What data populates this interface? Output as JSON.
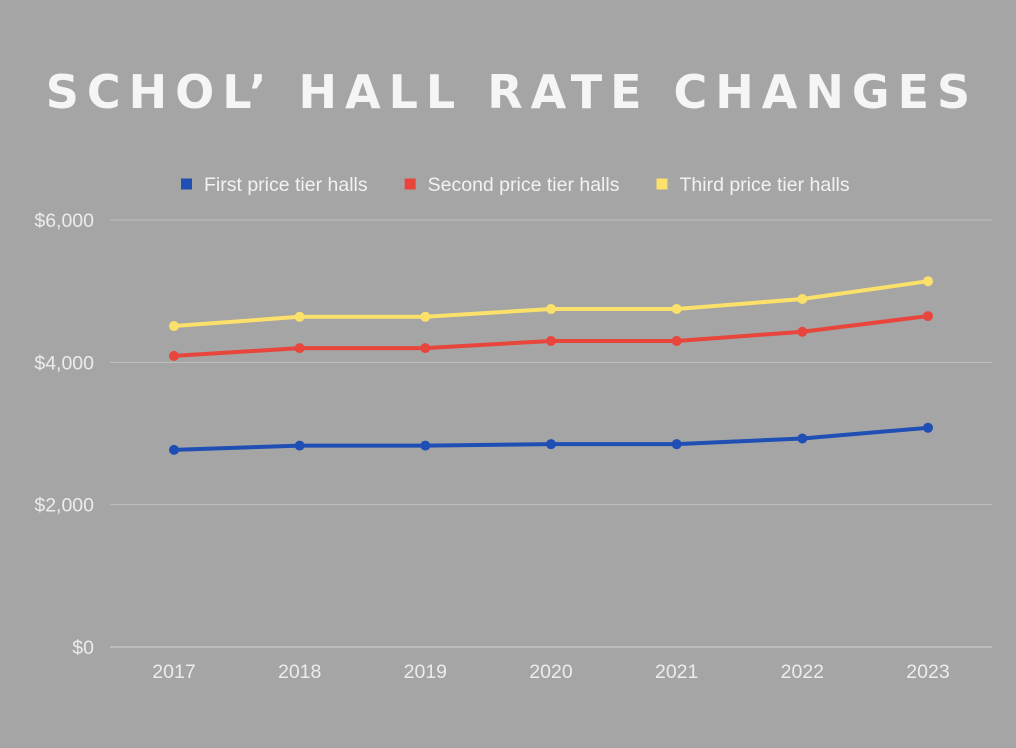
{
  "chart_data": {
    "type": "line",
    "title": "SCHOL’ HALL RATE CHANGES",
    "xlabel": "",
    "ylabel": "",
    "categories": [
      "2017",
      "2018",
      "2019",
      "2020",
      "2021",
      "2022",
      "2023"
    ],
    "y_ticks": [
      "$0",
      "$2,000",
      "$4,000",
      "$6,000"
    ],
    "ylim": [
      0,
      6000
    ],
    "grid": true,
    "legend_position": "top-center",
    "series": [
      {
        "name": "First price tier halls",
        "color": "#1f4eb4",
        "values": [
          2770,
          2830,
          2830,
          2850,
          2850,
          2930,
          3080
        ]
      },
      {
        "name": "Second price tier halls",
        "color": "#e8453c",
        "values": [
          4090,
          4200,
          4200,
          4300,
          4300,
          4430,
          4650
        ]
      },
      {
        "name": "Third price tier halls",
        "color": "#fbe06a",
        "values": [
          4510,
          4640,
          4640,
          4750,
          4750,
          4890,
          5140
        ]
      }
    ]
  }
}
